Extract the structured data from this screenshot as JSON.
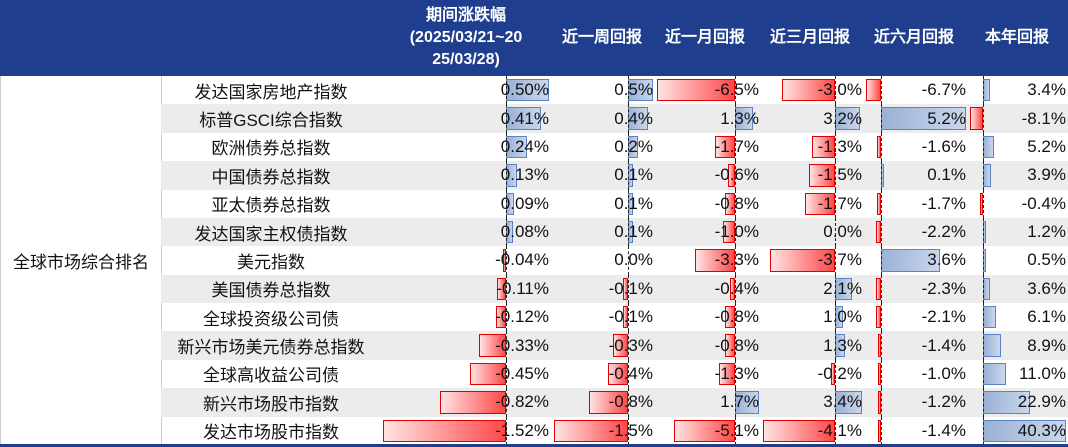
{
  "colors": {
    "header_bg": "#1f3e8e",
    "positive_bar": "#5b83c4",
    "negative_bar": "#ff3030",
    "alt_row": "#ececec"
  },
  "chart_data": {
    "type": "table",
    "header": {
      "period_title": "期间涨跌幅",
      "period_range_line1": "(2025/03/21~20",
      "period_range_line2": "25/03/28)",
      "columns": [
        "近一周回报",
        "近一月回报",
        "近三月回报",
        "近六月回报",
        "本年回报"
      ]
    },
    "group_label": "全球市场综合排名",
    "rows": [
      {
        "name": "发达国家房地产指数",
        "values": [
          0.5,
          0.5,
          -6.5,
          -3.0,
          -6.7,
          3.4
        ],
        "labels": [
          "0.50%",
          "0.5%",
          "-6.5%",
          "-3.0%",
          "-6.7%",
          "3.4%"
        ]
      },
      {
        "name": "标普GSCI综合指数",
        "values": [
          0.41,
          0.4,
          1.3,
          3.2,
          5.2,
          -8.1
        ],
        "labels": [
          "0.41%",
          "0.4%",
          "1.3%",
          "3.2%",
          "5.2%",
          "-8.1%"
        ]
      },
      {
        "name": "欧洲债券总指数",
        "values": [
          0.24,
          0.2,
          -1.7,
          -1.3,
          -1.6,
          5.2
        ],
        "labels": [
          "0.24%",
          "0.2%",
          "-1.7%",
          "-1.3%",
          "-1.6%",
          "5.2%"
        ]
      },
      {
        "name": "中国债券总指数",
        "values": [
          0.13,
          0.1,
          -0.6,
          -1.5,
          0.1,
          3.9
        ],
        "labels": [
          "0.13%",
          "0.1%",
          "-0.6%",
          "-1.5%",
          "0.1%",
          "3.9%"
        ]
      },
      {
        "name": "亚太债券总指数",
        "values": [
          0.09,
          0.1,
          -0.8,
          -1.7,
          -1.7,
          -0.4
        ],
        "labels": [
          "0.09%",
          "0.1%",
          "-0.8%",
          "-1.7%",
          "-1.7%",
          "-0.4%"
        ]
      },
      {
        "name": "发达国家主权债指数",
        "values": [
          0.08,
          0.1,
          -1.0,
          0.0,
          -2.2,
          1.2
        ],
        "labels": [
          "0.08%",
          "0.1%",
          "-1.0%",
          "0.0%",
          "-2.2%",
          "1.2%"
        ]
      },
      {
        "name": "美元指数",
        "values": [
          -0.04,
          0.0,
          -3.3,
          -3.7,
          3.6,
          0.5
        ],
        "labels": [
          "-0.04%",
          "0.0%",
          "-3.3%",
          "-3.7%",
          "3.6%",
          "0.5%"
        ]
      },
      {
        "name": "美国债券总指数",
        "values": [
          -0.11,
          -0.1,
          -0.4,
          2.1,
          -2.3,
          3.6
        ],
        "labels": [
          "-0.11%",
          "-0.1%",
          "-0.4%",
          "2.1%",
          "-2.3%",
          "3.6%"
        ]
      },
      {
        "name": "全球投资级公司债",
        "values": [
          -0.12,
          -0.1,
          -0.8,
          1.0,
          -2.1,
          6.1
        ],
        "labels": [
          "-0.12%",
          "-0.1%",
          "-0.8%",
          "1.0%",
          "-2.1%",
          "6.1%"
        ]
      },
      {
        "name": "新兴市场美元债券总指数",
        "values": [
          -0.33,
          -0.3,
          -0.8,
          1.3,
          -1.4,
          8.9
        ],
        "labels": [
          "-0.33%",
          "-0.3%",
          "-0.8%",
          "1.3%",
          "-1.4%",
          "8.9%"
        ]
      },
      {
        "name": "全球高收益公司债",
        "values": [
          -0.45,
          -0.4,
          -1.3,
          -0.2,
          -1.0,
          11.0
        ],
        "labels": [
          "-0.45%",
          "-0.4%",
          "-1.3%",
          "-0.2%",
          "-1.0%",
          "11.0%"
        ]
      },
      {
        "name": "新兴市场股市指数",
        "values": [
          -0.82,
          -0.8,
          1.7,
          3.4,
          -1.2,
          22.9
        ],
        "labels": [
          "-0.82%",
          "-0.8%",
          "1.7%",
          "3.4%",
          "-1.2%",
          "22.9%"
        ]
      },
      {
        "name": "发达市场股市指数",
        "values": [
          -1.52,
          -1.5,
          -5.1,
          -4.1,
          -1.4,
          40.3
        ],
        "labels": [
          "-1.52%",
          "-1.5%",
          "-5.1%",
          "-4.1%",
          "-1.4%",
          "40.3%"
        ]
      }
    ]
  }
}
